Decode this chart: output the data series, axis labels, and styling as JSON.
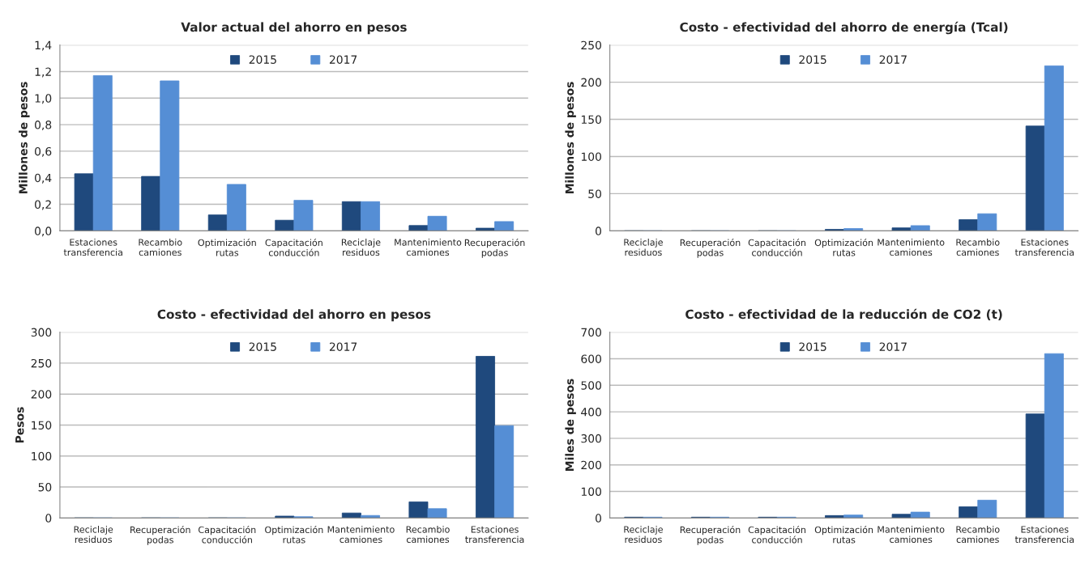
{
  "chart_data": [
    {
      "type": "bar",
      "title": "Valor actual del ahorro en pesos",
      "ylabel": "Millones de pesos",
      "categories": [
        "Estaciones\ntransferencia",
        "Recambio\ncamiones",
        "Optimización\nrutas",
        "Capacitación\nconducción",
        "Reciclaje\nresiduos",
        "Mantenimiento\ncamiones",
        "Recuperación\npodas"
      ],
      "series": [
        {
          "name": "2015",
          "color": "#1f497d",
          "values": [
            0.43,
            0.41,
            0.12,
            0.08,
            0.22,
            0.04,
            0.02
          ]
        },
        {
          "name": "2017",
          "color": "#558ed5",
          "values": [
            1.17,
            1.13,
            0.35,
            0.23,
            0.22,
            0.11,
            0.07
          ]
        }
      ],
      "ylim": [
        0,
        1.4
      ],
      "yticks": [
        {
          "value": 0,
          "label": "0,0"
        },
        {
          "value": 0.2,
          "label": "0,2"
        },
        {
          "value": 0.4,
          "label": "0,4"
        },
        {
          "value": 0.6,
          "label": "0,6"
        },
        {
          "value": 0.8,
          "label": "0,8"
        },
        {
          "value": 1.0,
          "label": "1,0"
        },
        {
          "value": 1.2,
          "label": "1,2"
        },
        {
          "value": 1.4,
          "label": "1,4"
        }
      ],
      "grid": "y",
      "legend": "top"
    },
    {
      "type": "bar",
      "title": "Costo - efectividad del ahorro de energía (Tcal)",
      "ylabel": "Millones de pesos",
      "categories": [
        "Reciclaje\nresiduos",
        "Recuperación\npodas",
        "Capacitación\nconducción",
        "Optimización\nrutas",
        "Mantenimiento\ncamiones",
        "Recambio\ncamiones",
        "Estaciones\ntransferencia"
      ],
      "series": [
        {
          "name": "2015",
          "color": "#1f497d",
          "values": [
            0,
            0,
            0,
            2,
            4,
            15,
            141
          ]
        },
        {
          "name": "2017",
          "color": "#558ed5",
          "values": [
            0,
            0,
            0,
            3,
            7,
            23,
            222
          ]
        }
      ],
      "ylim": [
        0,
        250
      ],
      "yticks": [
        0,
        50,
        100,
        150,
        200,
        250
      ],
      "grid": "y",
      "legend": "top"
    },
    {
      "type": "bar",
      "title": "Costo - efectividad del ahorro en pesos",
      "ylabel": "Pesos",
      "categories": [
        "Reciclaje\nresiduos",
        "Recuperación\npodas",
        "Capacitación\nconducción",
        "Optimización\nrutas",
        "Mantenimiento\ncamiones",
        "Recambio\ncamiones",
        "Estaciones\ntransferencia"
      ],
      "series": [
        {
          "name": "2015",
          "color": "#1f497d",
          "values": [
            0,
            0,
            0,
            3,
            8,
            26,
            261
          ]
        },
        {
          "name": "2017",
          "color": "#558ed5",
          "values": [
            0,
            0,
            0,
            2,
            4,
            15,
            149
          ]
        }
      ],
      "ylim": [
        0,
        300
      ],
      "yticks": [
        0,
        50,
        100,
        150,
        200,
        250,
        300
      ],
      "grid": "y",
      "legend": "top"
    },
    {
      "type": "bar",
      "title": "Costo - efectividad de la reducción de CO2 (t)",
      "ylabel": "Miles de pesos",
      "categories": [
        "Reciclaje\nresiduos",
        "Recuperación\npodas",
        "Capacitación\nconducción",
        "Optimización\nrutas",
        "Mantenimiento\ncamiones",
        "Recambio\ncamiones",
        "Estaciones\ntransferencia"
      ],
      "series": [
        {
          "name": "2015",
          "color": "#1f497d",
          "values": [
            3,
            3,
            3,
            9,
            14,
            42,
            392
          ]
        },
        {
          "name": "2017",
          "color": "#558ed5",
          "values": [
            3,
            3,
            3,
            11,
            22,
            67,
            619
          ]
        }
      ],
      "ylim": [
        0,
        700
      ],
      "yticks": [
        0,
        100,
        200,
        300,
        400,
        500,
        600,
        700
      ],
      "grid": "y",
      "legend": "top"
    }
  ]
}
